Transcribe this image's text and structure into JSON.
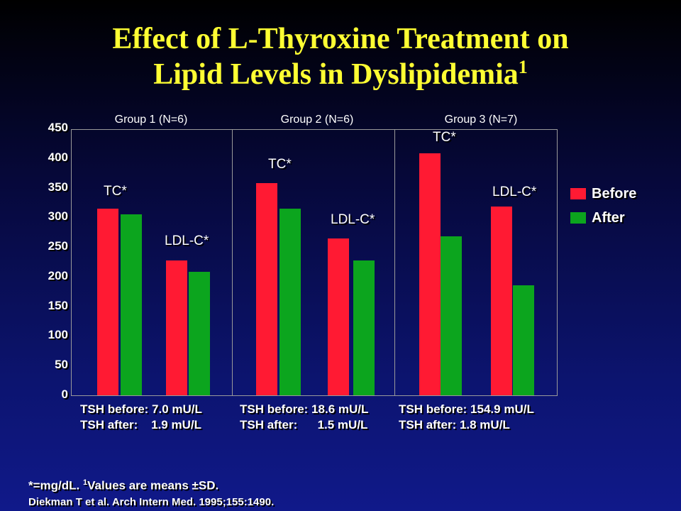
{
  "title": {
    "line1": "Effect of L-Thyroxine Treatment on",
    "line2": "Lipid Levels in Dyslipidemia",
    "superscript": "1"
  },
  "colors": {
    "before": "#ff1a33",
    "after": "#0ca51e",
    "title": "#ffff33"
  },
  "chart_data": {
    "type": "bar",
    "ylim": [
      0,
      450
    ],
    "yticks": [
      "450",
      "400",
      "350",
      "300",
      "250",
      "200",
      "150",
      "100",
      "50",
      "0"
    ],
    "series": [
      {
        "name": "Before",
        "values": [
          315,
          228,
          358,
          265,
          408,
          318
        ]
      },
      {
        "name": "After",
        "values": [
          305,
          208,
          315,
          228,
          268,
          185
        ]
      }
    ],
    "groups": [
      {
        "label": "Group 1 (N=6)",
        "tsh_before": "TSH before: 7.0 mU/L",
        "tsh_after": "TSH after:    1.9 mU/L",
        "pairs": [
          {
            "label": "TC*"
          },
          {
            "label": "LDL-C*"
          }
        ]
      },
      {
        "label": "Group 2 (N=6)",
        "tsh_before": "TSH before: 18.6 mU/L",
        "tsh_after": "TSH after:      1.5 mU/L",
        "pairs": [
          {
            "label": "TC*"
          },
          {
            "label": "LDL-C*"
          }
        ]
      },
      {
        "label": "Group 3 (N=7)",
        "tsh_before": "TSH before: 154.9 mU/L",
        "tsh_after": "TSH after: 1.8 mU/L",
        "pairs": [
          {
            "label": "TC*"
          },
          {
            "label": "LDL-C*"
          }
        ]
      }
    ],
    "legend": {
      "placement": "right",
      "items": [
        "Before",
        "After"
      ]
    }
  },
  "footnote": {
    "prefix": "*=mg/dL. ",
    "sup": "1",
    "text": "Values are means ±SD."
  },
  "citation": "Diekman T et al. Arch Intern Med. 1995;155:1490."
}
